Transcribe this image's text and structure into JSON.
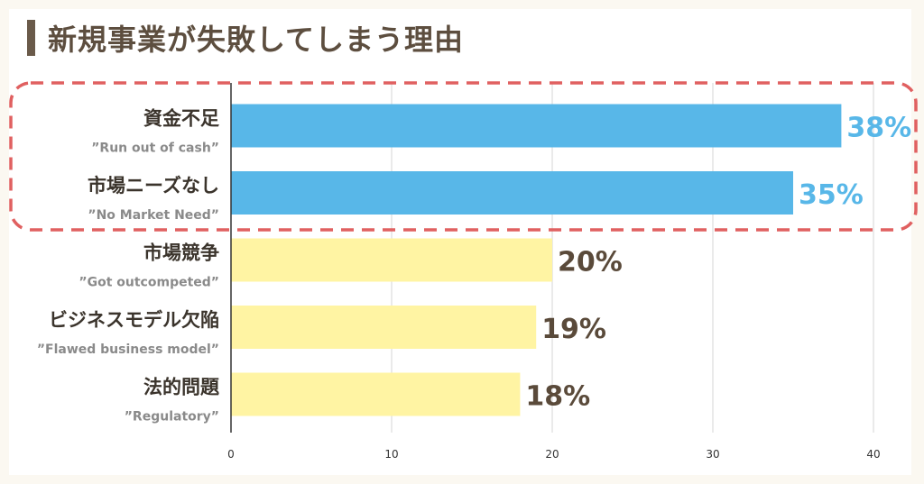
{
  "header": {
    "title": "新規事業が失敗してしまう理由"
  },
  "colors": {
    "highlight_bar": "#58b7e8",
    "other_bar": "#fff4a3",
    "highlight_text": "#58b7e8",
    "other_text": "#5a4a3a",
    "dashed_outline": "#e06060"
  },
  "chart_data": {
    "type": "bar",
    "orientation": "horizontal",
    "title": "新規事業が失敗してしまう理由",
    "categories": [
      "資金不足",
      "市場ニーズなし",
      "市場競争",
      "ビジネスモデル欠陥",
      "法的問題"
    ],
    "subcategories": [
      "”Run out of cash”",
      "”No Market Need”",
      "”Got outcompeted”",
      "”Flawed business model”",
      "”Regulatory”"
    ],
    "values": [
      38,
      35,
      20,
      19,
      18
    ],
    "value_labels": [
      "38%",
      "35%",
      "20%",
      "19%",
      "18%"
    ],
    "highlighted": [
      true,
      true,
      false,
      false,
      false
    ],
    "xlim": [
      0,
      40
    ],
    "xticks": [
      "0",
      "10",
      "20",
      "30",
      "40"
    ],
    "grid": true
  }
}
